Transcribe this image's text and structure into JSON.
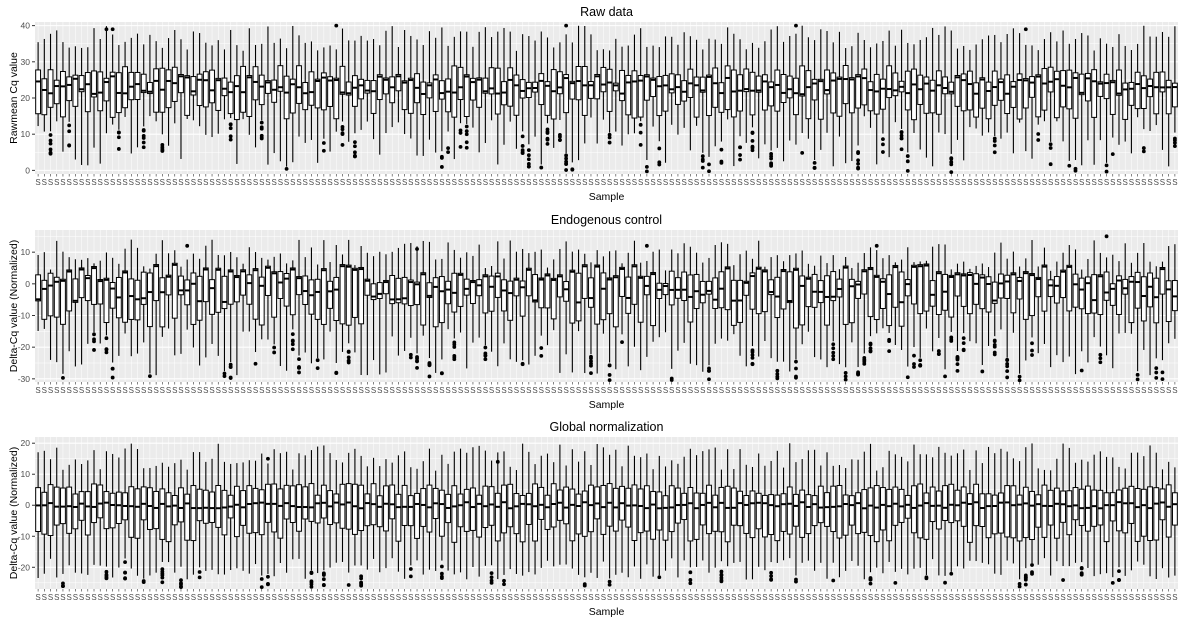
{
  "chart_data": [
    {
      "type": "boxplot",
      "title": "Raw data",
      "xlabel": "Sample",
      "ylabel": "Rawmean Cq value",
      "ylim": [
        -1,
        41
      ],
      "yticks": [
        0,
        10,
        20,
        30,
        40
      ],
      "n_samples": 184,
      "xtick_label": "S",
      "summary": {
        "median_range": [
          21,
          26
        ],
        "q1_range": [
          14,
          22
        ],
        "q3_range": [
          24,
          29
        ],
        "whisker_max_range": [
          33,
          40
        ],
        "whisker_min_range": [
          1,
          15
        ]
      },
      "notable_outliers": [
        39,
        40,
        40,
        40,
        39,
        39
      ]
    },
    {
      "type": "boxplot",
      "title": "Endogenous control",
      "xlabel": "Sample",
      "ylabel": "Delta-Cq value (Normalized)",
      "ylim": [
        -31,
        17
      ],
      "yticks": [
        -30,
        -20,
        -10,
        0,
        10
      ],
      "n_samples": 184,
      "xtick_label": "S",
      "summary": {
        "median_range": [
          -6,
          6
        ],
        "q1_range": [
          -14,
          -3
        ],
        "q3_range": [
          0,
          4
        ],
        "whisker_max_range": [
          4,
          14
        ],
        "whisker_min_range": [
          -29,
          -14
        ]
      },
      "notable_outliers": [
        12,
        11,
        12,
        12,
        15
      ]
    },
    {
      "type": "boxplot",
      "title": "Global normalization",
      "xlabel": "Sample",
      "ylabel": "Delta-Cq value (Normalized)",
      "ylim": [
        -27,
        22
      ],
      "yticks": [
        -20,
        -10,
        0,
        10,
        20
      ],
      "n_samples": 184,
      "xtick_label": "S",
      "summary": {
        "median_range": [
          -1,
          1
        ],
        "q1_range": [
          -12,
          -4
        ],
        "q3_range": [
          3,
          7
        ],
        "whisker_max_range": [
          11,
          20
        ],
        "whisker_min_range": [
          -24,
          -17
        ]
      },
      "notable_outliers": [
        15,
        14
      ]
    }
  ]
}
